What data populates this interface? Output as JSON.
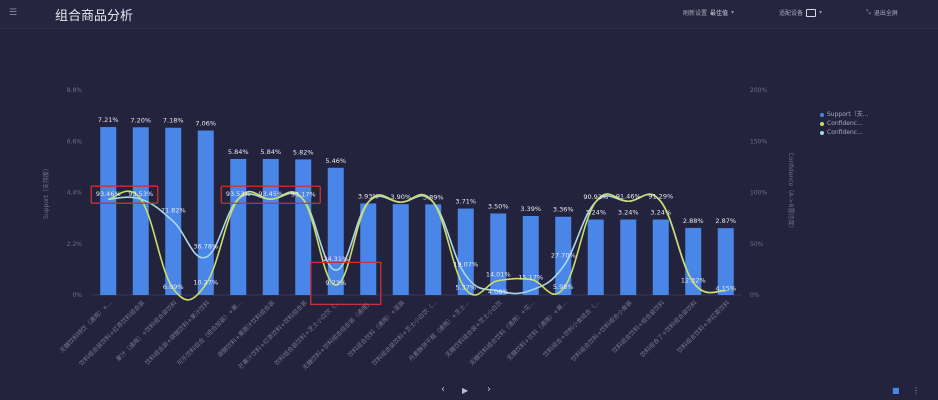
{
  "header": {
    "menu_icon": "hamburger-icon",
    "title": "组合商品分析",
    "refresh_label": "刷新设置",
    "refresh_value": "最佳值",
    "device_label": "适配设备",
    "device_icon": "monitor-icon",
    "exit_icon": "exit-fullscreen-icon",
    "exit_label": "退出全屏"
  },
  "footer": {
    "prev_icon": "chevron-left-icon",
    "play_icon": "play-icon",
    "next_icon": "chevron-right-icon",
    "bookmark_icon": "bookmark-icon",
    "more_icon": "more-vertical-icon"
  },
  "chart_data": {
    "type": "bar+line",
    "ylabel": "Support（支持度）",
    "y2label": "Confidence（A->B置信度）",
    "ylim": [
      0,
      8.8
    ],
    "yticks": [
      "0%",
      "2.2%",
      "4.4%",
      "6.6%",
      "8.8%"
    ],
    "y2lim": [
      0,
      200
    ],
    "y2ticks": [
      "0%",
      "50%",
      "100%",
      "150%",
      "200%"
    ],
    "legend_position": "top-right",
    "grid": false,
    "categories": [
      "无糖饮料特饮（通用）+...",
      "饮料组合装饮料+红茶饮料组合装",
      "果汁（通用）+饮料组合装饮料",
      "饮料组合装+碳酸饮料+果汁饮料",
      "可乐饮料组合（组合加装）+果...",
      "碳酸饮料+果蔬汁饮料组合装",
      "芒果汁饮料+红茶饮料+饮料组合装",
      "饮料组合装饮料+芝士小白饮（...",
      "无糖饮料+饮料组合组合装（通用）",
      "饮料组合饮料（通用）+混装",
      "饮料组合装饮料+芝士小白饮（...",
      "丹麦酥饼干糕（通用）+芝士...",
      "无糖饮料组合装+芝士小白饮",
      "无糖饮料组合饮料（通用）+花...",
      "无糖饮料+饮料（通用）+果...",
      "饮料组合+饮料小食组合（...",
      "饮料组合饮料+饮料组合小食装",
      "饮料组合饮料+组合装饮料",
      "饮料组合了+饮料组合装饮料",
      "饮料组合饮料+冰红茶饮料"
    ],
    "series": [
      {
        "name": "Support（支...",
        "type": "bar",
        "color": "#4a86e8",
        "values": [
          7.21,
          7.2,
          7.18,
          7.06,
          5.84,
          5.84,
          5.82,
          5.46,
          3.93,
          3.9,
          3.89,
          3.71,
          3.5,
          3.39,
          3.36,
          3.24,
          3.24,
          3.24,
          2.88,
          2.87
        ],
        "labels": [
          "7.21%",
          "7.20%",
          "7.18%",
          "7.06%",
          "5.84%",
          "5.84%",
          "5.82%",
          "5.46%",
          "3.93%",
          "3.90%",
          "3.89%",
          "3.71%",
          "3.50%",
          "3.39%",
          "3.36%",
          "3.24%",
          "3.24%",
          "3.24%",
          "2.88%",
          "2.87%"
        ]
      },
      {
        "name": "Confidenc...",
        "type": "line",
        "color": "#c9dd6a",
        "values": [
          93.46,
          93.53,
          6.09,
          10.27,
          93.53,
          93.45,
          93.17,
          9.73,
          90.5,
          90.5,
          90.5,
          5.37,
          14.01,
          15.17,
          5.98,
          90.92,
          91.46,
          91.29,
          12.32,
          4.15
        ],
        "labels": [
          "93.46%",
          "93.53%",
          "6.09%",
          "10.27%",
          "93.53%",
          "93.45%",
          "93.17%",
          "9.73%",
          "",
          "",
          "",
          "5.37%",
          "14.01%",
          "15.17%",
          "5.98%",
          "90.92%",
          "91.46%",
          "91.29%",
          "12.32%",
          "4.15%"
        ]
      },
      {
        "name": "Confidenc...",
        "type": "line",
        "color": "#a8d8e8",
        "values": [
          93.46,
          93.53,
          71.82,
          36.78,
          93.53,
          93.45,
          93.17,
          24.31,
          90.5,
          90.5,
          90.5,
          19.07,
          4.08,
          4.5,
          27.7,
          90.92,
          91.46,
          91.29,
          12.32,
          4.15
        ],
        "labels": [
          "",
          "",
          "71.82%",
          "36.78%",
          "",
          "",
          "",
          "24.31%",
          "",
          "",
          "",
          "19.07%",
          "4.08%",
          "",
          "27.70%",
          "",
          "",
          "",
          "",
          ""
        ]
      }
    ],
    "annotations": "red highlight boxes"
  }
}
